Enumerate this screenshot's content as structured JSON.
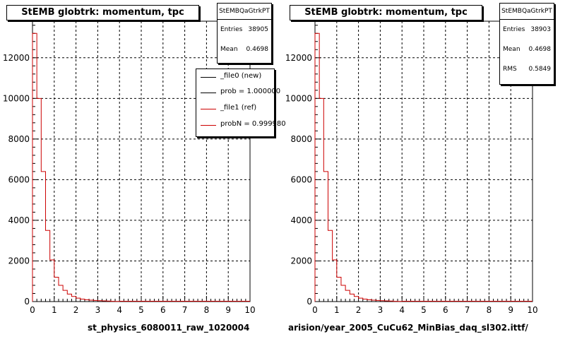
{
  "colors": {
    "ref_line": "#cc0000",
    "new_line": "#000000",
    "grid": "#000000"
  },
  "left_panel": {
    "title": "StEMB globtrk: momentum, tpc",
    "stats": {
      "name": "StEMBQaGtrkPT",
      "rows": [
        {
          "label": "Entries",
          "value": "38905"
        },
        {
          "label": "Mean",
          "value": "0.4698"
        }
      ]
    },
    "legend": [
      {
        "label": "_file0 (new)",
        "color": "#000000"
      },
      {
        "label": "prob = 1.000000",
        "color": "#000000"
      },
      {
        "label": "_file1 (ref)",
        "color": "#cc0000"
      },
      {
        "label": "probN = 0.999980",
        "color": "#cc0000"
      }
    ],
    "x_title": "st_physics_6080011_raw_1020004"
  },
  "right_panel": {
    "title": "StEMB globtrk: momentum, tpc",
    "stats": {
      "name": "StEMBQaGtrkPT",
      "rows": [
        {
          "label": "Entries",
          "value": "38903"
        },
        {
          "label": "Mean",
          "value": "0.4698"
        },
        {
          "label": "RMS",
          "value": "0.5849"
        }
      ]
    },
    "x_title": "arision/year_2005_CuCu62_MinBias_daq_sl302.ittf/"
  },
  "chart_data": [
    {
      "type": "bar",
      "title": "StEMB globtrk: momentum, tpc",
      "xlabel": "st_physics_6080011_raw_1020004",
      "ylabel": "",
      "xlim": [
        0,
        10
      ],
      "ylim": [
        0,
        13800
      ],
      "bin_width": 0.2,
      "x_ticks": [
        "0",
        "1",
        "2",
        "3",
        "4",
        "5",
        "6",
        "7",
        "8",
        "9",
        "10"
      ],
      "y_ticks": [
        "0",
        "2000",
        "4000",
        "6000",
        "8000",
        "10000",
        "12000"
      ],
      "grid": true,
      "series": [
        {
          "name": "_file1 (ref)",
          "values": [
            13200,
            10000,
            6400,
            3500,
            2050,
            1200,
            800,
            550,
            370,
            250,
            170,
            120,
            90,
            70,
            55,
            45,
            35,
            25,
            15,
            10
          ]
        }
      ]
    },
    {
      "type": "bar",
      "title": "StEMB globtrk: momentum, tpc",
      "xlabel": "arision/year_2005_CuCu62_MinBias_daq_sl302.ittf/",
      "ylabel": "",
      "xlim": [
        0,
        10
      ],
      "ylim": [
        0,
        13800
      ],
      "bin_width": 0.2,
      "x_ticks": [
        "0",
        "1",
        "2",
        "3",
        "4",
        "5",
        "6",
        "7",
        "8",
        "9",
        "10"
      ],
      "y_ticks": [
        "0",
        "2000",
        "4000",
        "6000",
        "8000",
        "10000",
        "12000"
      ],
      "grid": true,
      "series": [
        {
          "name": "",
          "values": [
            13200,
            10000,
            6400,
            3500,
            2050,
            1200,
            800,
            550,
            370,
            250,
            170,
            120,
            90,
            70,
            55,
            45,
            35,
            25,
            15,
            10
          ]
        }
      ]
    }
  ]
}
